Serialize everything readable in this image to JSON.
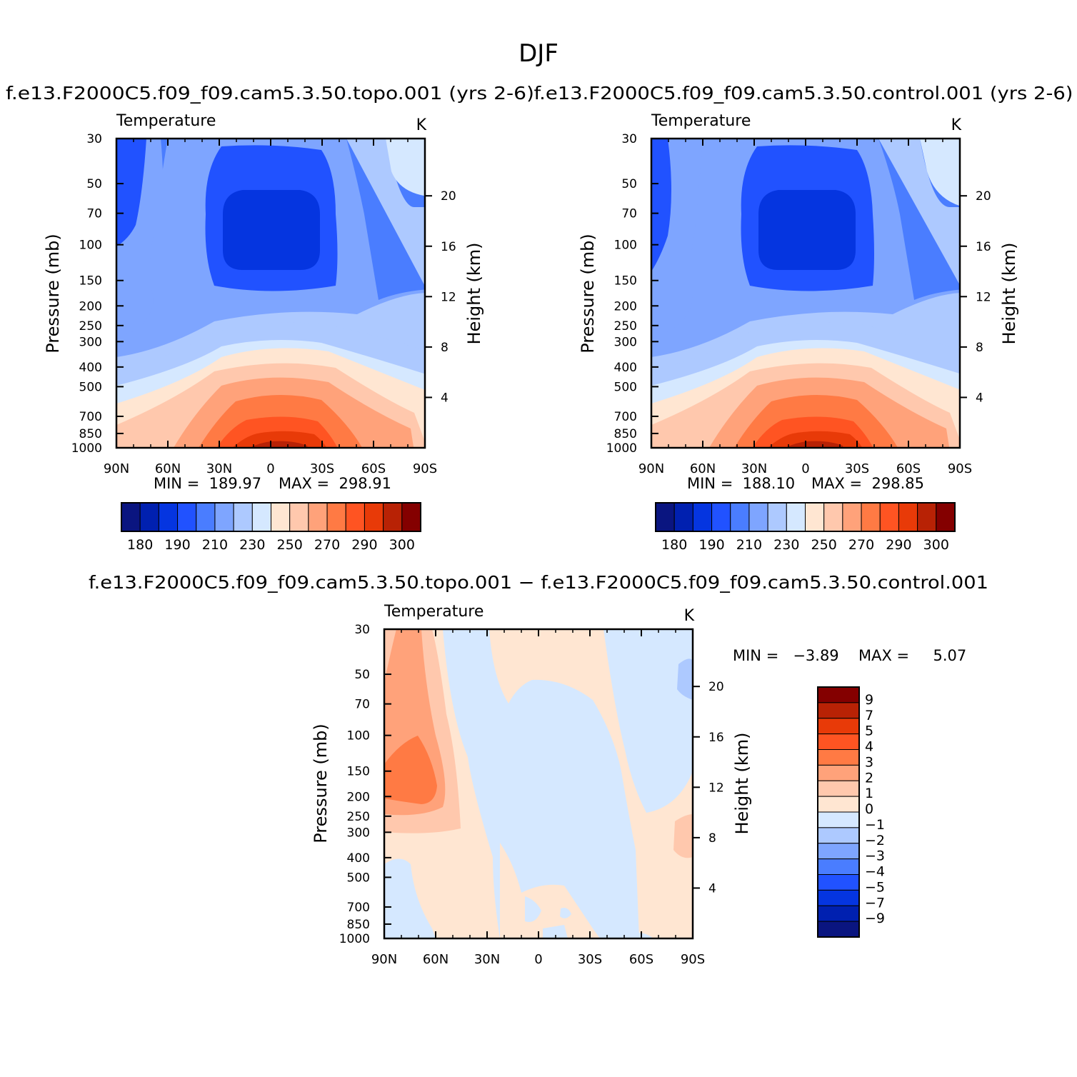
{
  "figure": {
    "title": "DJF"
  },
  "panels": [
    {
      "title": "f.e13.F2000C5.f09_f09.cam5.3.50.topo.001 (yrs 2-6)",
      "left_label": "Temperature",
      "right_label": "K",
      "min_text": "MIN =  189.97",
      "max_text": "MAX =  298.91"
    },
    {
      "title": "f.e13.F2000C5.f09_f09.cam5.3.50.control.001 (yrs 2-6)",
      "left_label": "Temperature",
      "right_label": "K",
      "min_text": "MIN =  188.10",
      "max_text": "MAX =  298.85"
    },
    {
      "title": "f.e13.F2000C5.f09_f09.cam5.3.50.topo.001 − f.e13.F2000C5.f09_f09.cam5.3.50.control.001",
      "left_label": "Temperature",
      "right_label": "K",
      "min_text": "MIN =   −3.89",
      "max_text": "MAX =     5.07"
    }
  ],
  "chart_data": [
    {
      "type": "heatmap",
      "name": "topo",
      "ylabel": "Pressure (mb)",
      "y2label": "Height (km)",
      "x_ticks": [
        "90N",
        "60N",
        "30N",
        "0",
        "30S",
        "60S",
        "90S"
      ],
      "y_ticks": [
        30,
        50,
        70,
        100,
        150,
        200,
        250,
        300,
        400,
        500,
        700,
        850,
        1000
      ],
      "y2_ticks": [
        4,
        8,
        12,
        16,
        20
      ],
      "min": 189.97,
      "max": 298.91,
      "colorbar_labels": [
        "180",
        "190",
        "210",
        "230",
        "250",
        "270",
        "290",
        "300"
      ],
      "levels": [
        175,
        180,
        185,
        190,
        200,
        210,
        220,
        230,
        240,
        250,
        260,
        270,
        280,
        290,
        295,
        300,
        305
      ]
    },
    {
      "type": "heatmap",
      "name": "control",
      "ylabel": "Pressure (mb)",
      "y2label": "Height (km)",
      "x_ticks": [
        "90N",
        "60N",
        "30N",
        "0",
        "30S",
        "60S",
        "90S"
      ],
      "y_ticks": [
        30,
        50,
        70,
        100,
        150,
        200,
        250,
        300,
        400,
        500,
        700,
        850,
        1000
      ],
      "y2_ticks": [
        4,
        8,
        12,
        16,
        20
      ],
      "min": 188.1,
      "max": 298.85,
      "colorbar_labels": [
        "180",
        "190",
        "210",
        "230",
        "250",
        "270",
        "290",
        "300"
      ]
    },
    {
      "type": "heatmap",
      "name": "difference",
      "ylabel": "Pressure (mb)",
      "y2label": "Height (km)",
      "x_ticks": [
        "90N",
        "60N",
        "30N",
        "0",
        "30S",
        "60S",
        "90S"
      ],
      "y_ticks": [
        30,
        50,
        70,
        100,
        150,
        200,
        250,
        300,
        400,
        500,
        700,
        850,
        1000
      ],
      "y2_ticks": [
        4,
        8,
        12,
        16,
        20
      ],
      "min": -3.89,
      "max": 5.07,
      "colorbar_labels": [
        "9",
        "7",
        "5",
        "4",
        "3",
        "2",
        "1",
        "0",
        "−1",
        "−2",
        "−3",
        "−4",
        "−5",
        "−7",
        "−9"
      ]
    }
  ],
  "colors": {
    "seq16": [
      "#0a1580",
      "#0020b0",
      "#0535e0",
      "#2152ff",
      "#4a7dff",
      "#7ea5ff",
      "#adc9ff",
      "#d5e8ff",
      "#ffe6d2",
      "#ffc8ad",
      "#ffa27a",
      "#ff7a44",
      "#ff5422",
      "#e83a08",
      "#b82205",
      "#840000"
    ],
    "div16": [
      "#840000",
      "#b82205",
      "#e83a08",
      "#ff5422",
      "#ff7a44",
      "#ffa27a",
      "#ffc8ad",
      "#ffe6d2",
      "#d5e8ff",
      "#adc9ff",
      "#7ea5ff",
      "#4a7dff",
      "#2152ff",
      "#0535e0",
      "#0020b0",
      "#0a1580"
    ]
  }
}
